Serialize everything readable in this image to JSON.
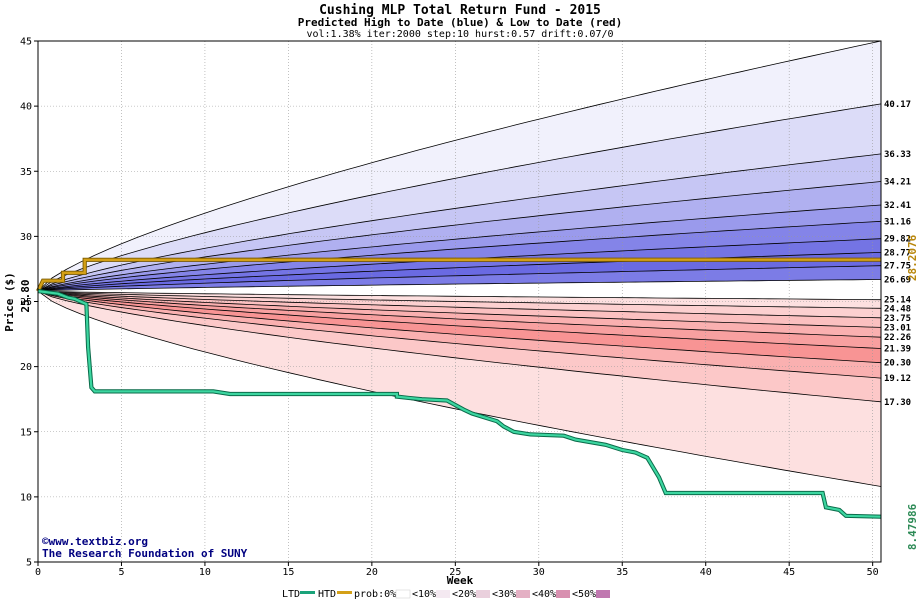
{
  "chart_data": {
    "type": "area",
    "title": "Cushing MLP Total Return Fund - 2015",
    "subtitle": "Predicted High to Date (blue) &  Low to Date (red)",
    "params": "vol:1.38% iter:2000 step:10 hurst:0.57 drift:0.07/0",
    "xlabel": "Week",
    "ylabel": "Price ($)",
    "xlim": [
      0,
      50.5
    ],
    "ylim": [
      5,
      45
    ],
    "xticks": [
      0,
      5,
      10,
      15,
      20,
      25,
      30,
      35,
      40,
      45,
      50
    ],
    "yticks": [
      5,
      10,
      15,
      20,
      25,
      30,
      35,
      40,
      45
    ],
    "grid": true,
    "start_price": 25.8,
    "start_label": "25.80",
    "high_end_labels": [
      "40.17",
      "36.33",
      "34.21",
      "32.41",
      "31.16",
      "29.82",
      "28.77",
      "27.75",
      "26.69"
    ],
    "low_end_labels": [
      "25.14",
      "24.48",
      "23.75",
      "23.01",
      "22.26",
      "21.39",
      "20.30",
      "19.12",
      "17.30"
    ],
    "high_end_values": [
      40.17,
      36.33,
      34.21,
      32.41,
      31.16,
      29.82,
      28.77,
      27.75,
      26.69
    ],
    "low_end_values": [
      25.14,
      24.48,
      23.75,
      23.01,
      22.26,
      21.39,
      20.3,
      19.12,
      17.3
    ],
    "outer_high_end": 45,
    "outer_low_end": 10.8,
    "series": [
      {
        "name": "HTD",
        "color": "#d4a017",
        "label": "28.2076",
        "points": [
          [
            0,
            25.8
          ],
          [
            0.3,
            26.6
          ],
          [
            1.5,
            26.6
          ],
          [
            1.5,
            27.2
          ],
          [
            2.8,
            27.2
          ],
          [
            2.8,
            28.2
          ],
          [
            50.5,
            28.2076
          ]
        ]
      },
      {
        "name": "LTD",
        "color": "#2e8b57",
        "label": "8.47986",
        "points": [
          [
            0,
            25.8
          ],
          [
            1.2,
            25.6
          ],
          [
            1.8,
            25.3
          ],
          [
            2.2,
            25.2
          ],
          [
            2.9,
            24.8
          ],
          [
            3.0,
            21.5
          ],
          [
            3.2,
            18.4
          ],
          [
            3.4,
            18.1
          ],
          [
            10.5,
            18.1
          ],
          [
            11.5,
            17.9
          ],
          [
            16.5,
            17.9
          ],
          [
            21.5,
            17.9
          ],
          [
            21.5,
            17.7
          ],
          [
            22.2,
            17.6
          ],
          [
            23.0,
            17.5
          ],
          [
            24.5,
            17.4
          ],
          [
            25.5,
            16.7
          ],
          [
            26.0,
            16.4
          ],
          [
            27.5,
            15.8
          ],
          [
            27.9,
            15.4
          ],
          [
            28.5,
            15.0
          ],
          [
            29.5,
            14.8
          ],
          [
            31.5,
            14.7
          ],
          [
            32.2,
            14.4
          ],
          [
            34.0,
            14.0
          ],
          [
            35.0,
            13.6
          ],
          [
            35.8,
            13.4
          ],
          [
            36.5,
            13.0
          ],
          [
            37.2,
            11.5
          ],
          [
            37.6,
            10.3
          ],
          [
            47.0,
            10.3
          ],
          [
            47.2,
            9.2
          ],
          [
            48.0,
            9.0
          ],
          [
            48.4,
            8.55
          ],
          [
            50.5,
            8.48
          ]
        ]
      }
    ]
  },
  "credit": {
    "line1": "©www.textbiz.org",
    "line2": "The Research Foundation of SUNY"
  },
  "legend": {
    "ltd": "LTD",
    "htd": "HTD",
    "prob": "prob:0%",
    "b10": "<10%",
    "b20": "<20%",
    "b30": "<30%",
    "b40": "<40%",
    "b50": "<50%"
  },
  "colors": {
    "htd": "#d4a017",
    "ltd": "#1aa37a",
    "ltd_fill": "#3cd6a0"
  }
}
